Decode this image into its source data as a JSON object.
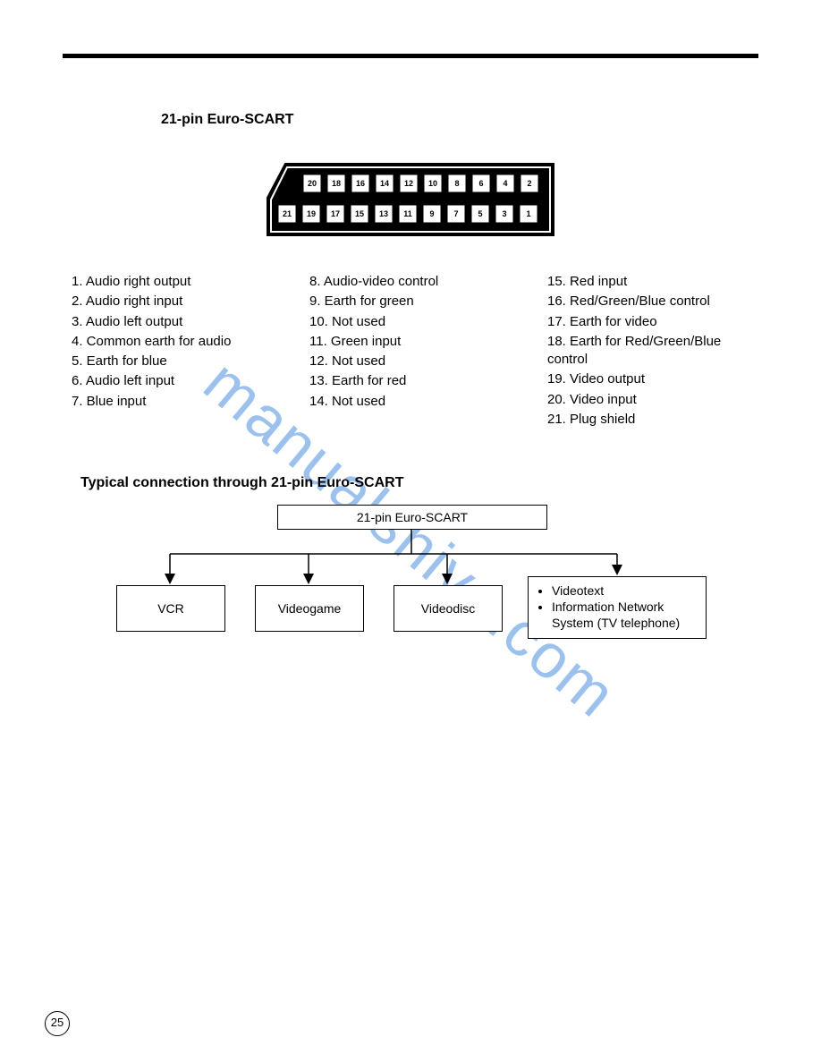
{
  "title": "21-pin Euro-SCART",
  "connector": {
    "top_row_pins": [
      "20",
      "18",
      "16",
      "14",
      "12",
      "10",
      "8",
      "6",
      "4",
      "2"
    ],
    "bottom_row_pins": [
      "21",
      "19",
      "17",
      "15",
      "13",
      "11",
      "9",
      "7",
      "5",
      "3",
      "1"
    ],
    "pin_box_size": 20,
    "pin_gap": 5,
    "body_fill": "#000000",
    "pin_fill": "#ffffff",
    "pin_text_color": "#000000",
    "pin_fontsize": 9
  },
  "pins": {
    "col1": [
      "1. Audio right output",
      "2. Audio right input",
      "3. Audio left output",
      "4. Common earth for audio",
      "5. Earth for blue",
      "6. Audio left input",
      "7. Blue input"
    ],
    "col2": [
      "8. Audio-video control",
      "9. Earth for green",
      "10. Not used",
      "11. Green input",
      "12. Not used",
      "13. Earth for red",
      "14. Not used"
    ],
    "col3": [
      "15. Red input",
      "16. Red/Green/Blue control",
      "17. Earth for video",
      "18. Earth for Red/Green/Blue control",
      "19. Video output",
      "20. Video input",
      "21. Plug shield"
    ]
  },
  "section2_title": "Typical connection through 21-pin Euro-SCART",
  "flow": {
    "top_label": "21-pin Euro-SCART",
    "box1": "VCR",
    "box2": "Videogame",
    "box3": "Videodisc",
    "box4_items": [
      "Videotext",
      "Information Network System (TV telephone)"
    ]
  },
  "page_number": "25",
  "watermark": "manualshive.com"
}
